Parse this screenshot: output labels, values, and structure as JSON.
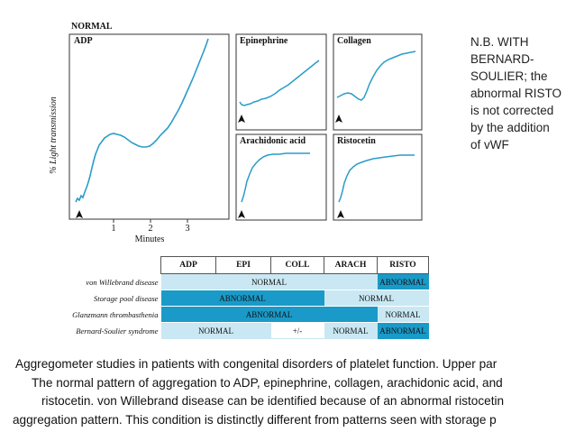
{
  "figure": {
    "normal_label": "NORMAL",
    "panels": {
      "adp": "ADP",
      "epinephrine": "Epinephrine",
      "collagen": "Collagen",
      "arachidonic": "Arachidonic acid",
      "ristocetin": "Ristocetin"
    },
    "y_axis_label": "% Light transmission",
    "x_ticks": [
      "1",
      "2",
      "3"
    ],
    "x_axis_label": "Minutes",
    "trace_color": "#2a9cc8"
  },
  "note": {
    "lines": [
      "N.B. WITH",
      "BERNARD-",
      "SOULIER; the",
      "abnormal RISTO",
      "is not corrected",
      "by the addition",
      "of vWF"
    ]
  },
  "table": {
    "headers": [
      "ADP",
      "EPI",
      "COLL",
      "ARACH",
      "RISTO"
    ],
    "rows": [
      {
        "label": "von Willebrand disease",
        "cells": [
          "NORMAL",
          "ABNORMAL"
        ]
      },
      {
        "label": "Storage pool disease",
        "cells": [
          "ABNORMAL",
          "NORMAL"
        ]
      },
      {
        "label": "Glanzmann thrombasthenia",
        "cells": [
          "ABNORMAL",
          "NORMAL"
        ]
      },
      {
        "label": "Bernard-Soulier syndrome",
        "cells": [
          "NORMAL",
          "+/-",
          "NORMAL",
          "ABNORMAL"
        ]
      }
    ],
    "colors": {
      "abnormal": "#1a9ac8",
      "normal": "#c9e8f3"
    }
  },
  "caption": {
    "lines": [
      "Aggregometer studies in patients with congenital disorders of platelet function. Upper par",
      "The normal pattern of aggregation to ADP, epinephrine, collagen, arachidonic acid, and",
      "ristocetin. von Willebrand disease can be identified because of an abnormal ristocetin",
      "aggregation pattern. This condition is distinctly different from patterns seen with storage p"
    ]
  }
}
